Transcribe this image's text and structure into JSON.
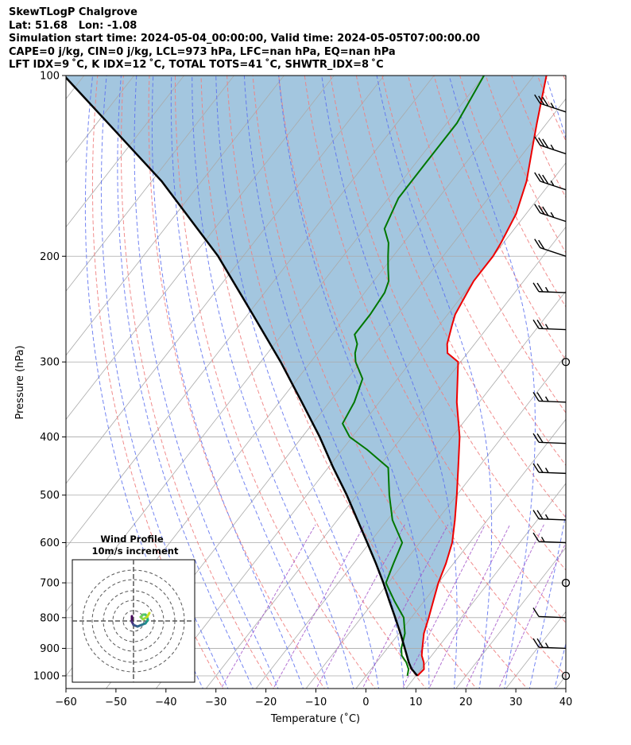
{
  "header": {
    "line1": "SkewTLogP Chalgrove",
    "line2": "Lat: 51.68   Lon: -1.08",
    "line3": "Simulation start time: 2024-05-04_00:00:00, Valid time: 2024-05-05T07:00:00.00",
    "line4": "CAPE=0 j/kg, CIN=0 j/kg, LCL=973 hPa, LFC=nan hPa, EQ=nan hPa",
    "line5": "LFT IDX=9 ˚C, K IDX=12 ˚C, TOTAL TOTS=41 ˚C, SHWTR_IDX=8 ˚C"
  },
  "chart_data": {
    "type": "line",
    "subtype": "skew-T log-P diagram",
    "xlabel": "Temperature (˚C)",
    "ylabel": "Pressure (hPa)",
    "xlim": [
      -60,
      40
    ],
    "ylim": [
      1050,
      100
    ],
    "y_scale": "log",
    "x_ticks": [
      "−60",
      "−50",
      "−40",
      "−30",
      "−20",
      "−10",
      "0",
      "10",
      "20",
      "30",
      "40"
    ],
    "y_ticks": [
      "100",
      "200",
      "300",
      "400",
      "500",
      "600",
      "700",
      "800",
      "900",
      "1000"
    ],
    "grid": true,
    "background_lines": [
      "isotherms (gray)",
      "dry adiabats (red dashed)",
      "moist adiabats (blue dashed)",
      "mixing ratio (purple dashed)"
    ],
    "colors": {
      "temperature": "#ee0000",
      "dewpoint": "#007700",
      "parcel": "#000000",
      "shading": "#a3c6df",
      "dry_adiabat": "#f08080",
      "moist_adiabat": "#5b6ff0",
      "isotherm": "#aaaaaa",
      "mixing_ratio": "#a050c8"
    },
    "series": [
      {
        "name": "",
        "role": "temperature",
        "p": [
          1000,
          975,
          950,
          925,
          900,
          850,
          800,
          750,
          700,
          650,
          600,
          550,
          500,
          450,
          400,
          350,
          300,
          290,
          280,
          260,
          250,
          230,
          220,
          210,
          200,
          190,
          170,
          150,
          130,
          120,
          100
        ],
        "t": [
          10.3,
          10.6,
          9.5,
          8.0,
          7.0,
          5.0,
          3.5,
          1.8,
          0.0,
          -1.5,
          -3.5,
          -6.5,
          -10.0,
          -14.0,
          -18.5,
          -24.5,
          -30.5,
          -34.0,
          -35.5,
          -37.5,
          -38.5,
          -39.5,
          -40.0,
          -40.0,
          -40.0,
          -40.5,
          -42.0,
          -45.0,
          -49.5,
          -52.0,
          -57.5
        ]
      },
      {
        "name": "",
        "role": "dewpoint",
        "p": [
          1000,
          975,
          950,
          925,
          900,
          850,
          800,
          750,
          700,
          650,
          600,
          550,
          500,
          450,
          420,
          400,
          380,
          350,
          320,
          300,
          290,
          280,
          270,
          250,
          230,
          220,
          210,
          200,
          190,
          180,
          160,
          140,
          120,
          100
        ],
        "t": [
          8.3,
          7.5,
          6.0,
          4.0,
          2.8,
          1.2,
          -1.5,
          -6.0,
          -10.5,
          -12.0,
          -13.5,
          -19.0,
          -23.5,
          -28.0,
          -35.0,
          -40.5,
          -44.0,
          -45.0,
          -47.0,
          -51.0,
          -52.5,
          -53.5,
          -55.5,
          -55.5,
          -56.0,
          -57.0,
          -59.0,
          -61.0,
          -63.0,
          -66.0,
          -68.0,
          -68.0,
          -68.0,
          -70.0
        ]
      },
      {
        "name": "",
        "role": "parcel",
        "p": [
          1000,
          973,
          950,
          900,
          850,
          800,
          750,
          700,
          650,
          600,
          550,
          500,
          450,
          400,
          350,
          300,
          250,
          200,
          150,
          100
        ],
        "t": [
          10.3,
          8.0,
          6.5,
          3.5,
          0.3,
          -3.2,
          -7.0,
          -11.0,
          -15.5,
          -20.5,
          -26.0,
          -32.0,
          -39.0,
          -46.5,
          -55.5,
          -66.0,
          -79.0,
          -95.0,
          -118.0,
          -154.0
        ]
      }
    ],
    "wind_barbs": {
      "p": [
        115,
        135,
        155,
        175,
        200,
        230,
        265,
        300,
        350,
        410,
        460,
        550,
        600,
        700,
        800,
        900,
        1000
      ],
      "speed_kt": [
        25,
        25,
        25,
        25,
        20,
        15,
        15,
        0,
        15,
        20,
        15,
        15,
        5,
        0,
        10,
        15,
        0
      ],
      "calm_at": [
        300,
        700,
        1000
      ]
    },
    "inset": {
      "title": "Wind Profile",
      "subtitle": "10m/s increment",
      "type": "hodograph"
    }
  }
}
